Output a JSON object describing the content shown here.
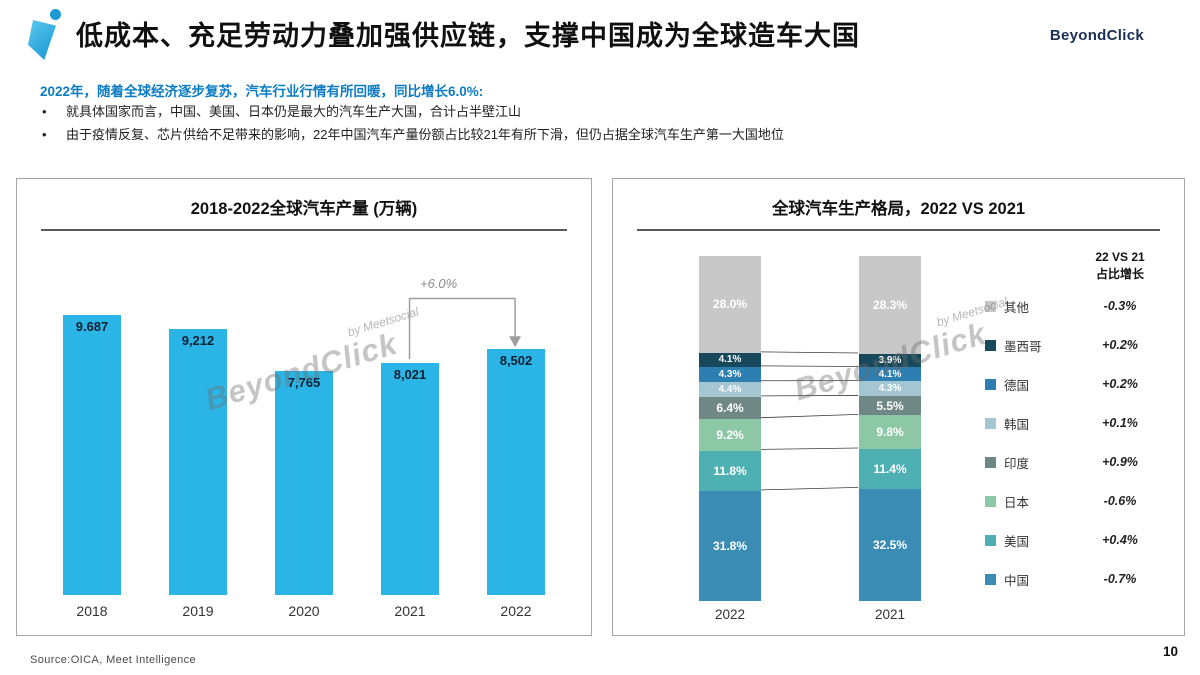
{
  "slide": {
    "title": "低成本、充足劳动力叠加强供应链，支撑中国成为全球造车大国",
    "brand": "BeyondClick",
    "intro": "2022年，随着全球经济逐步复苏，汽车行业行情有所回暖，同比增长6.0%:",
    "bullets": [
      "就具体国家而言，中国、美国、日本仍是最大的汽车生产大国，合计占半壁江山",
      "由于疫情反复、芯片供给不足带来的影响，22年中国汽车产量份额占比较21年有所下滑，但仍占据全球汽车生产第一大国地位"
    ],
    "watermark_big": "BeyondClick",
    "watermark_small": "by Meetsocial",
    "source": "Source:OICA, Meet Intelligence",
    "page_number": "10"
  },
  "chart_data": [
    {
      "type": "bar",
      "title": "2018-2022全球汽车产量 (万辆)",
      "categories": [
        "2018",
        "2019",
        "2020",
        "2021",
        "2022"
      ],
      "values": [
        9687,
        9212,
        7765,
        8021,
        8502
      ],
      "value_labels": [
        "9.687",
        "9,212",
        "7,765",
        "8,021",
        "8,502"
      ],
      "annotation": "+6.0%",
      "bar_color": "#2ab5e6",
      "xlabel": "",
      "ylabel": "万辆",
      "ylim": [
        0,
        10000
      ],
      "grid": false
    },
    {
      "type": "stacked-bar",
      "title": "全球汽车生产格局，2022 VS 2021",
      "categories": [
        "2022",
        "2021"
      ],
      "change_header": [
        "22 VS 21",
        "占比增长"
      ],
      "legend_position": "right",
      "series": [
        {
          "name": "其他",
          "color": "#c8c8c8",
          "values": [
            28.0,
            28.3
          ],
          "change": "-0.3%"
        },
        {
          "name": "墨西哥",
          "color": "#17485c",
          "values": [
            4.1,
            3.9
          ],
          "change": "+0.2%"
        },
        {
          "name": "德国",
          "color": "#2c7fb0",
          "values": [
            4.3,
            4.1
          ],
          "change": "+0.2%"
        },
        {
          "name": "韩国",
          "color": "#a3c6d2",
          "values": [
            4.4,
            4.3
          ],
          "change": "+0.1%"
        },
        {
          "name": "印度",
          "color": "#6f8886",
          "values": [
            6.4,
            5.5
          ],
          "change": "+0.9%"
        },
        {
          "name": "日本",
          "color": "#8cc8a6",
          "values": [
            9.2,
            9.8
          ],
          "change": "-0.6%"
        },
        {
          "name": "美国",
          "color": "#4eb0b3",
          "values": [
            11.8,
            11.4
          ],
          "change": "+0.4%"
        },
        {
          "name": "中国",
          "color": "#3a8cb4",
          "values": [
            31.8,
            32.5
          ],
          "change": "-0.7%"
        }
      ]
    }
  ]
}
